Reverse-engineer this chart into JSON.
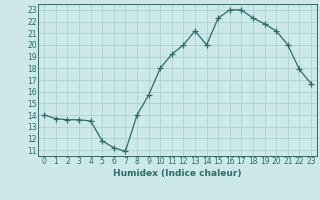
{
  "x": [
    0,
    1,
    2,
    3,
    4,
    5,
    6,
    7,
    8,
    9,
    10,
    11,
    12,
    13,
    14,
    15,
    16,
    17,
    18,
    19,
    20,
    21,
    22,
    23
  ],
  "y": [
    14.0,
    13.7,
    13.6,
    13.6,
    13.5,
    11.8,
    11.2,
    10.9,
    14.0,
    15.7,
    18.0,
    19.2,
    20.0,
    21.2,
    20.0,
    22.3,
    23.0,
    23.0,
    22.3,
    21.8,
    21.2,
    20.0,
    17.9,
    16.7
  ],
  "line_color": "#2e6b6b",
  "marker": "+",
  "marker_size": 4,
  "bg_color": "#cce8e8",
  "grid_color": "#aacccc",
  "xlabel": "Humidex (Indice chaleur)",
  "ylim": [
    10.5,
    23.5
  ],
  "xlim": [
    -0.5,
    23.5
  ],
  "yticks": [
    11,
    12,
    13,
    14,
    15,
    16,
    17,
    18,
    19,
    20,
    21,
    22,
    23
  ],
  "xticks": [
    0,
    1,
    2,
    3,
    4,
    5,
    6,
    7,
    8,
    9,
    10,
    11,
    12,
    13,
    14,
    15,
    16,
    17,
    18,
    19,
    20,
    21,
    22,
    23
  ],
  "label_fontsize": 6.5,
  "tick_fontsize": 5.5
}
